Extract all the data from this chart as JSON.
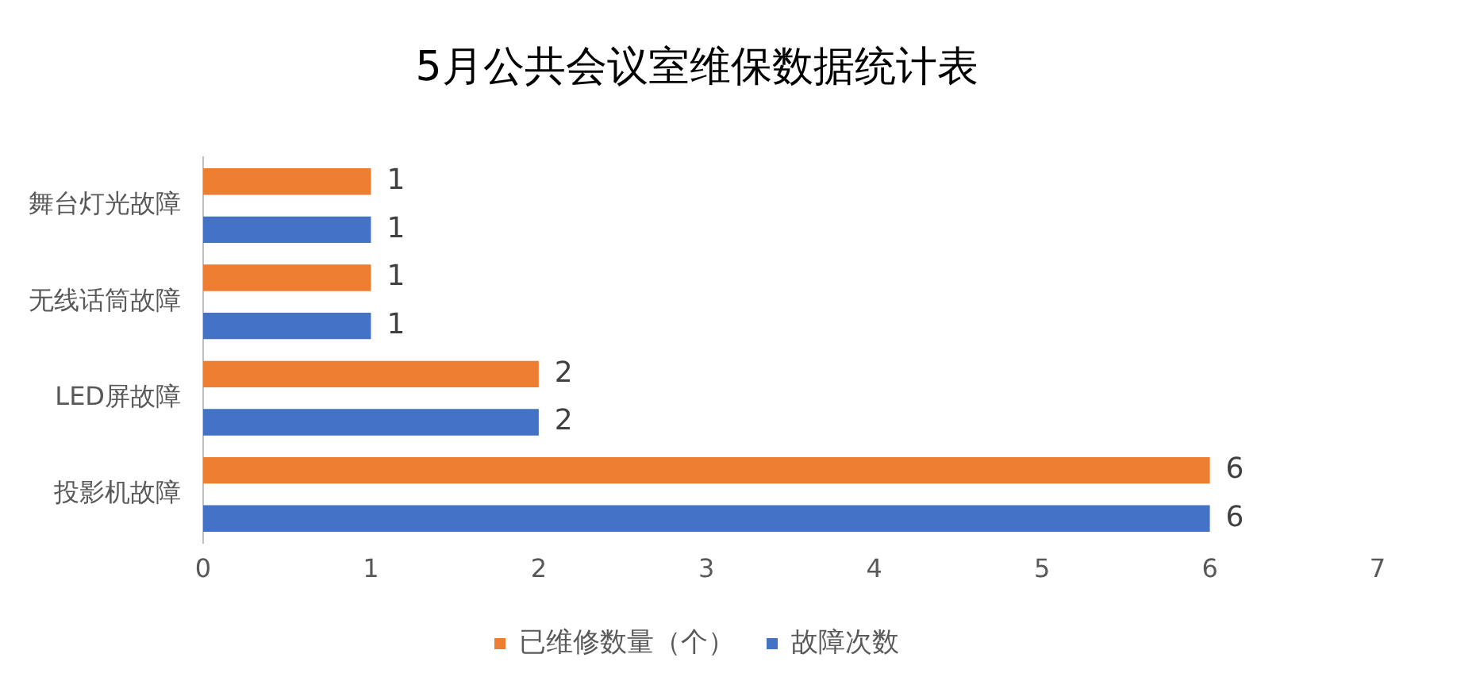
{
  "chart_data": {
    "type": "bar",
    "orientation": "horizontal",
    "title": "5月公共会议室维保数据统计表",
    "categories": [
      "舞台灯光故障",
      "无线话筒故障",
      "LED屏故障",
      "投影机故障"
    ],
    "series": [
      {
        "name": "已维修数量（个）",
        "color": "#ed7d31",
        "values": [
          1,
          1,
          2,
          6
        ]
      },
      {
        "name": "故障次数",
        "color": "#4472c4",
        "values": [
          1,
          1,
          2,
          6
        ]
      }
    ],
    "xlim": [
      0,
      7
    ],
    "xticks": [
      0,
      1,
      2,
      3,
      4,
      5,
      6,
      7
    ],
    "grid": false,
    "legend": "bottom",
    "data_labels": true
  }
}
